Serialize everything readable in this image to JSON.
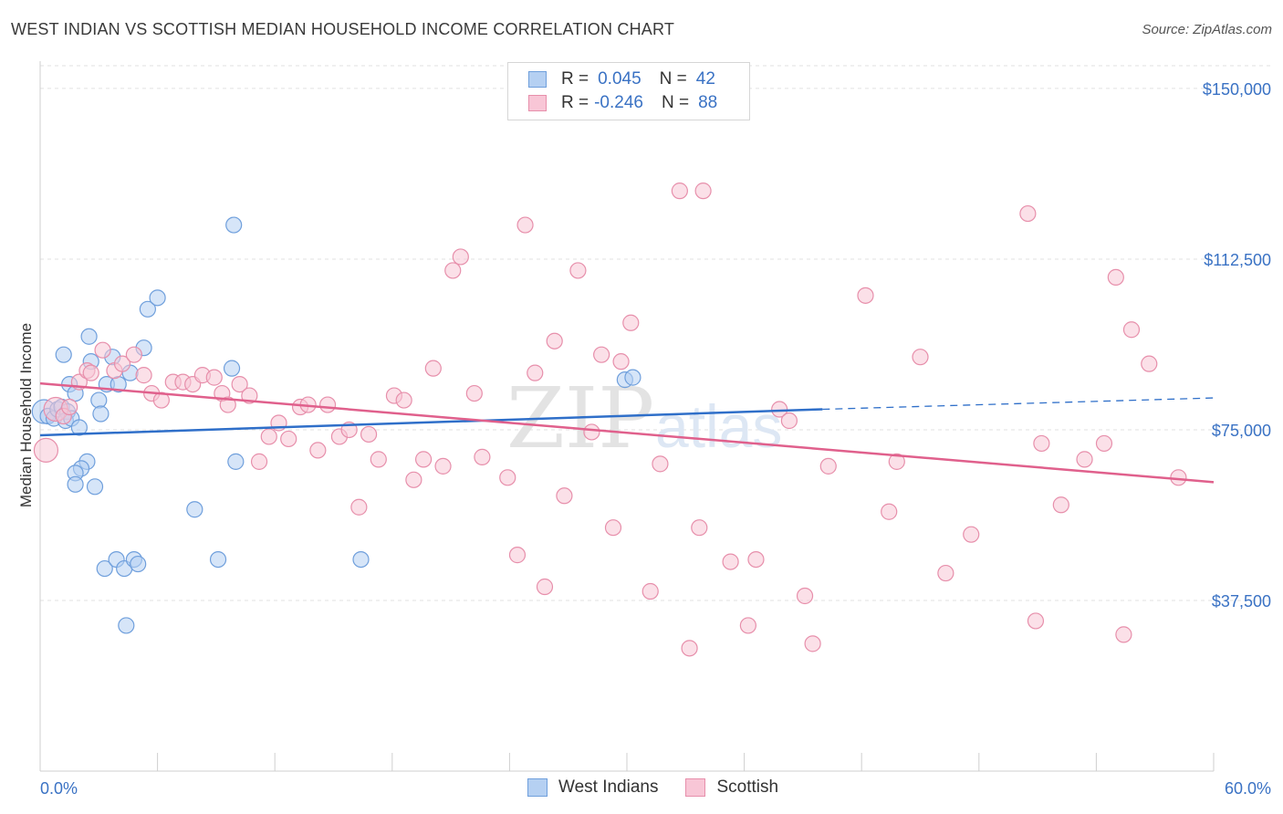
{
  "header": {
    "title": "WEST INDIAN VS SCOTTISH MEDIAN HOUSEHOLD INCOME CORRELATION CHART",
    "source": "Source: ZipAtlas.com"
  },
  "watermark": {
    "main": "ZIP",
    "sub": "atlas"
  },
  "legend": {
    "rows": [
      {
        "r_label": "R =",
        "r_value": "0.045",
        "n_label": "N =",
        "n_value": "42"
      },
      {
        "r_label": "R =",
        "r_value": "-0.246",
        "n_label": "N =",
        "n_value": "88"
      }
    ]
  },
  "colors": {
    "blue_fill": "#b5d0f2",
    "blue_stroke": "#6f9fdc",
    "blue_line": "#2f6fc9",
    "pink_fill": "#f8c6d6",
    "pink_stroke": "#e78fab",
    "pink_line": "#e0608c",
    "tick_label": "#3a72c4"
  },
  "chart_data": {
    "type": "scatter",
    "title": "WEST INDIAN VS SCOTTISH MEDIAN HOUSEHOLD INCOME CORRELATION CHART",
    "xlabel": "",
    "ylabel": "Median Household Income",
    "xlim": [
      0,
      60
    ],
    "ylim": [
      0,
      155000
    ],
    "x_tick_labels": [
      "0.0%",
      "60.0%"
    ],
    "y_ticks": [
      37500,
      75000,
      112500,
      150000
    ],
    "y_tick_labels": [
      "$37,500",
      "$75,000",
      "$112,500",
      "$150,000"
    ],
    "grid": "horizontal dashed",
    "legend_position": "top-center",
    "series": [
      {
        "name": "West Indians",
        "color": "#6f9fdc",
        "trend": {
          "x": [
            0,
            40
          ],
          "y": [
            73800,
            79500
          ],
          "extended_to": [
            60,
            82000
          ]
        },
        "points": [
          [
            0.2,
            79000
          ],
          [
            0.4,
            78000
          ],
          [
            0.7,
            77500
          ],
          [
            0.9,
            79500
          ],
          [
            1.1,
            80000
          ],
          [
            1.4,
            79000
          ],
          [
            1.3,
            77000
          ],
          [
            1.6,
            77500
          ],
          [
            1.2,
            91500
          ],
          [
            1.5,
            85000
          ],
          [
            1.8,
            83000
          ],
          [
            2.0,
            75500
          ],
          [
            2.5,
            95500
          ],
          [
            2.6,
            90000
          ],
          [
            2.4,
            68000
          ],
          [
            2.1,
            66500
          ],
          [
            1.8,
            65500
          ],
          [
            1.8,
            63000
          ],
          [
            2.8,
            62500
          ],
          [
            3.0,
            81500
          ],
          [
            3.1,
            78500
          ],
          [
            3.4,
            85000
          ],
          [
            3.7,
            91000
          ],
          [
            4.0,
            85000
          ],
          [
            4.6,
            87500
          ],
          [
            5.3,
            93000
          ],
          [
            5.5,
            101500
          ],
          [
            6.0,
            104000
          ],
          [
            3.3,
            44500
          ],
          [
            3.9,
            46500
          ],
          [
            4.3,
            44500
          ],
          [
            4.8,
            46500
          ],
          [
            5.0,
            45500
          ],
          [
            4.4,
            32000
          ],
          [
            7.9,
            57500
          ],
          [
            9.1,
            46500
          ],
          [
            9.8,
            88500
          ],
          [
            10.0,
            68000
          ],
          [
            9.9,
            120000
          ],
          [
            16.4,
            46500
          ],
          [
            29.9,
            86000
          ],
          [
            30.3,
            86500
          ]
        ]
      },
      {
        "name": "Scottish",
        "color": "#e78fab",
        "trend": {
          "x": [
            0,
            60
          ],
          "y": [
            85200,
            63500
          ]
        },
        "points": [
          [
            0.3,
            70500
          ],
          [
            0.8,
            79500
          ],
          [
            1.2,
            78000
          ],
          [
            1.5,
            80000
          ],
          [
            2.0,
            85500
          ],
          [
            2.4,
            88000
          ],
          [
            2.6,
            87500
          ],
          [
            3.2,
            92500
          ],
          [
            3.8,
            88000
          ],
          [
            4.2,
            89500
          ],
          [
            4.8,
            91500
          ],
          [
            5.3,
            87000
          ],
          [
            5.7,
            83000
          ],
          [
            6.2,
            81500
          ],
          [
            6.8,
            85500
          ],
          [
            7.3,
            85500
          ],
          [
            7.8,
            85000
          ],
          [
            8.3,
            87000
          ],
          [
            8.9,
            86500
          ],
          [
            9.3,
            83000
          ],
          [
            9.6,
            80500
          ],
          [
            10.2,
            85000
          ],
          [
            10.7,
            82500
          ],
          [
            11.2,
            68000
          ],
          [
            11.7,
            73500
          ],
          [
            12.2,
            76500
          ],
          [
            12.7,
            73000
          ],
          [
            13.3,
            80000
          ],
          [
            13.7,
            80500
          ],
          [
            14.2,
            70500
          ],
          [
            14.7,
            80500
          ],
          [
            15.3,
            73500
          ],
          [
            15.8,
            75000
          ],
          [
            16.3,
            58000
          ],
          [
            16.8,
            74000
          ],
          [
            17.3,
            68500
          ],
          [
            18.1,
            82500
          ],
          [
            18.6,
            81500
          ],
          [
            19.1,
            64000
          ],
          [
            19.6,
            68500
          ],
          [
            20.1,
            88500
          ],
          [
            20.6,
            67000
          ],
          [
            21.1,
            110000
          ],
          [
            22.2,
            83000
          ],
          [
            22.6,
            69000
          ],
          [
            21.5,
            113000
          ],
          [
            23.9,
            64500
          ],
          [
            24.4,
            47500
          ],
          [
            24.8,
            120000
          ],
          [
            25.3,
            87500
          ],
          [
            25.8,
            40500
          ],
          [
            26.3,
            94500
          ],
          [
            26.8,
            60500
          ],
          [
            27.5,
            110000
          ],
          [
            28.2,
            74500
          ],
          [
            28.7,
            91500
          ],
          [
            29.3,
            53500
          ],
          [
            29.7,
            90000
          ],
          [
            30.2,
            98500
          ],
          [
            31.2,
            39500
          ],
          [
            31.7,
            67500
          ],
          [
            32.7,
            127500
          ],
          [
            33.2,
            27000
          ],
          [
            33.7,
            53500
          ],
          [
            33.9,
            127500
          ],
          [
            35.3,
            46000
          ],
          [
            36.2,
            32000
          ],
          [
            36.6,
            46500
          ],
          [
            37.8,
            79500
          ],
          [
            38.3,
            77000
          ],
          [
            39.1,
            38500
          ],
          [
            39.5,
            28000
          ],
          [
            40.3,
            67000
          ],
          [
            42.2,
            104500
          ],
          [
            43.4,
            57000
          ],
          [
            43.8,
            68000
          ],
          [
            45.0,
            91000
          ],
          [
            46.3,
            43500
          ],
          [
            47.6,
            52000
          ],
          [
            50.5,
            122500
          ],
          [
            50.9,
            33000
          ],
          [
            51.2,
            72000
          ],
          [
            52.2,
            58500
          ],
          [
            53.4,
            68500
          ],
          [
            54.4,
            72000
          ],
          [
            55.0,
            108500
          ],
          [
            55.4,
            30000
          ],
          [
            55.8,
            97000
          ],
          [
            56.7,
            89500
          ],
          [
            58.2,
            64500
          ]
        ]
      }
    ]
  },
  "bottom_legend": {
    "items": [
      {
        "label": "West Indians"
      },
      {
        "label": "Scottish"
      }
    ]
  }
}
